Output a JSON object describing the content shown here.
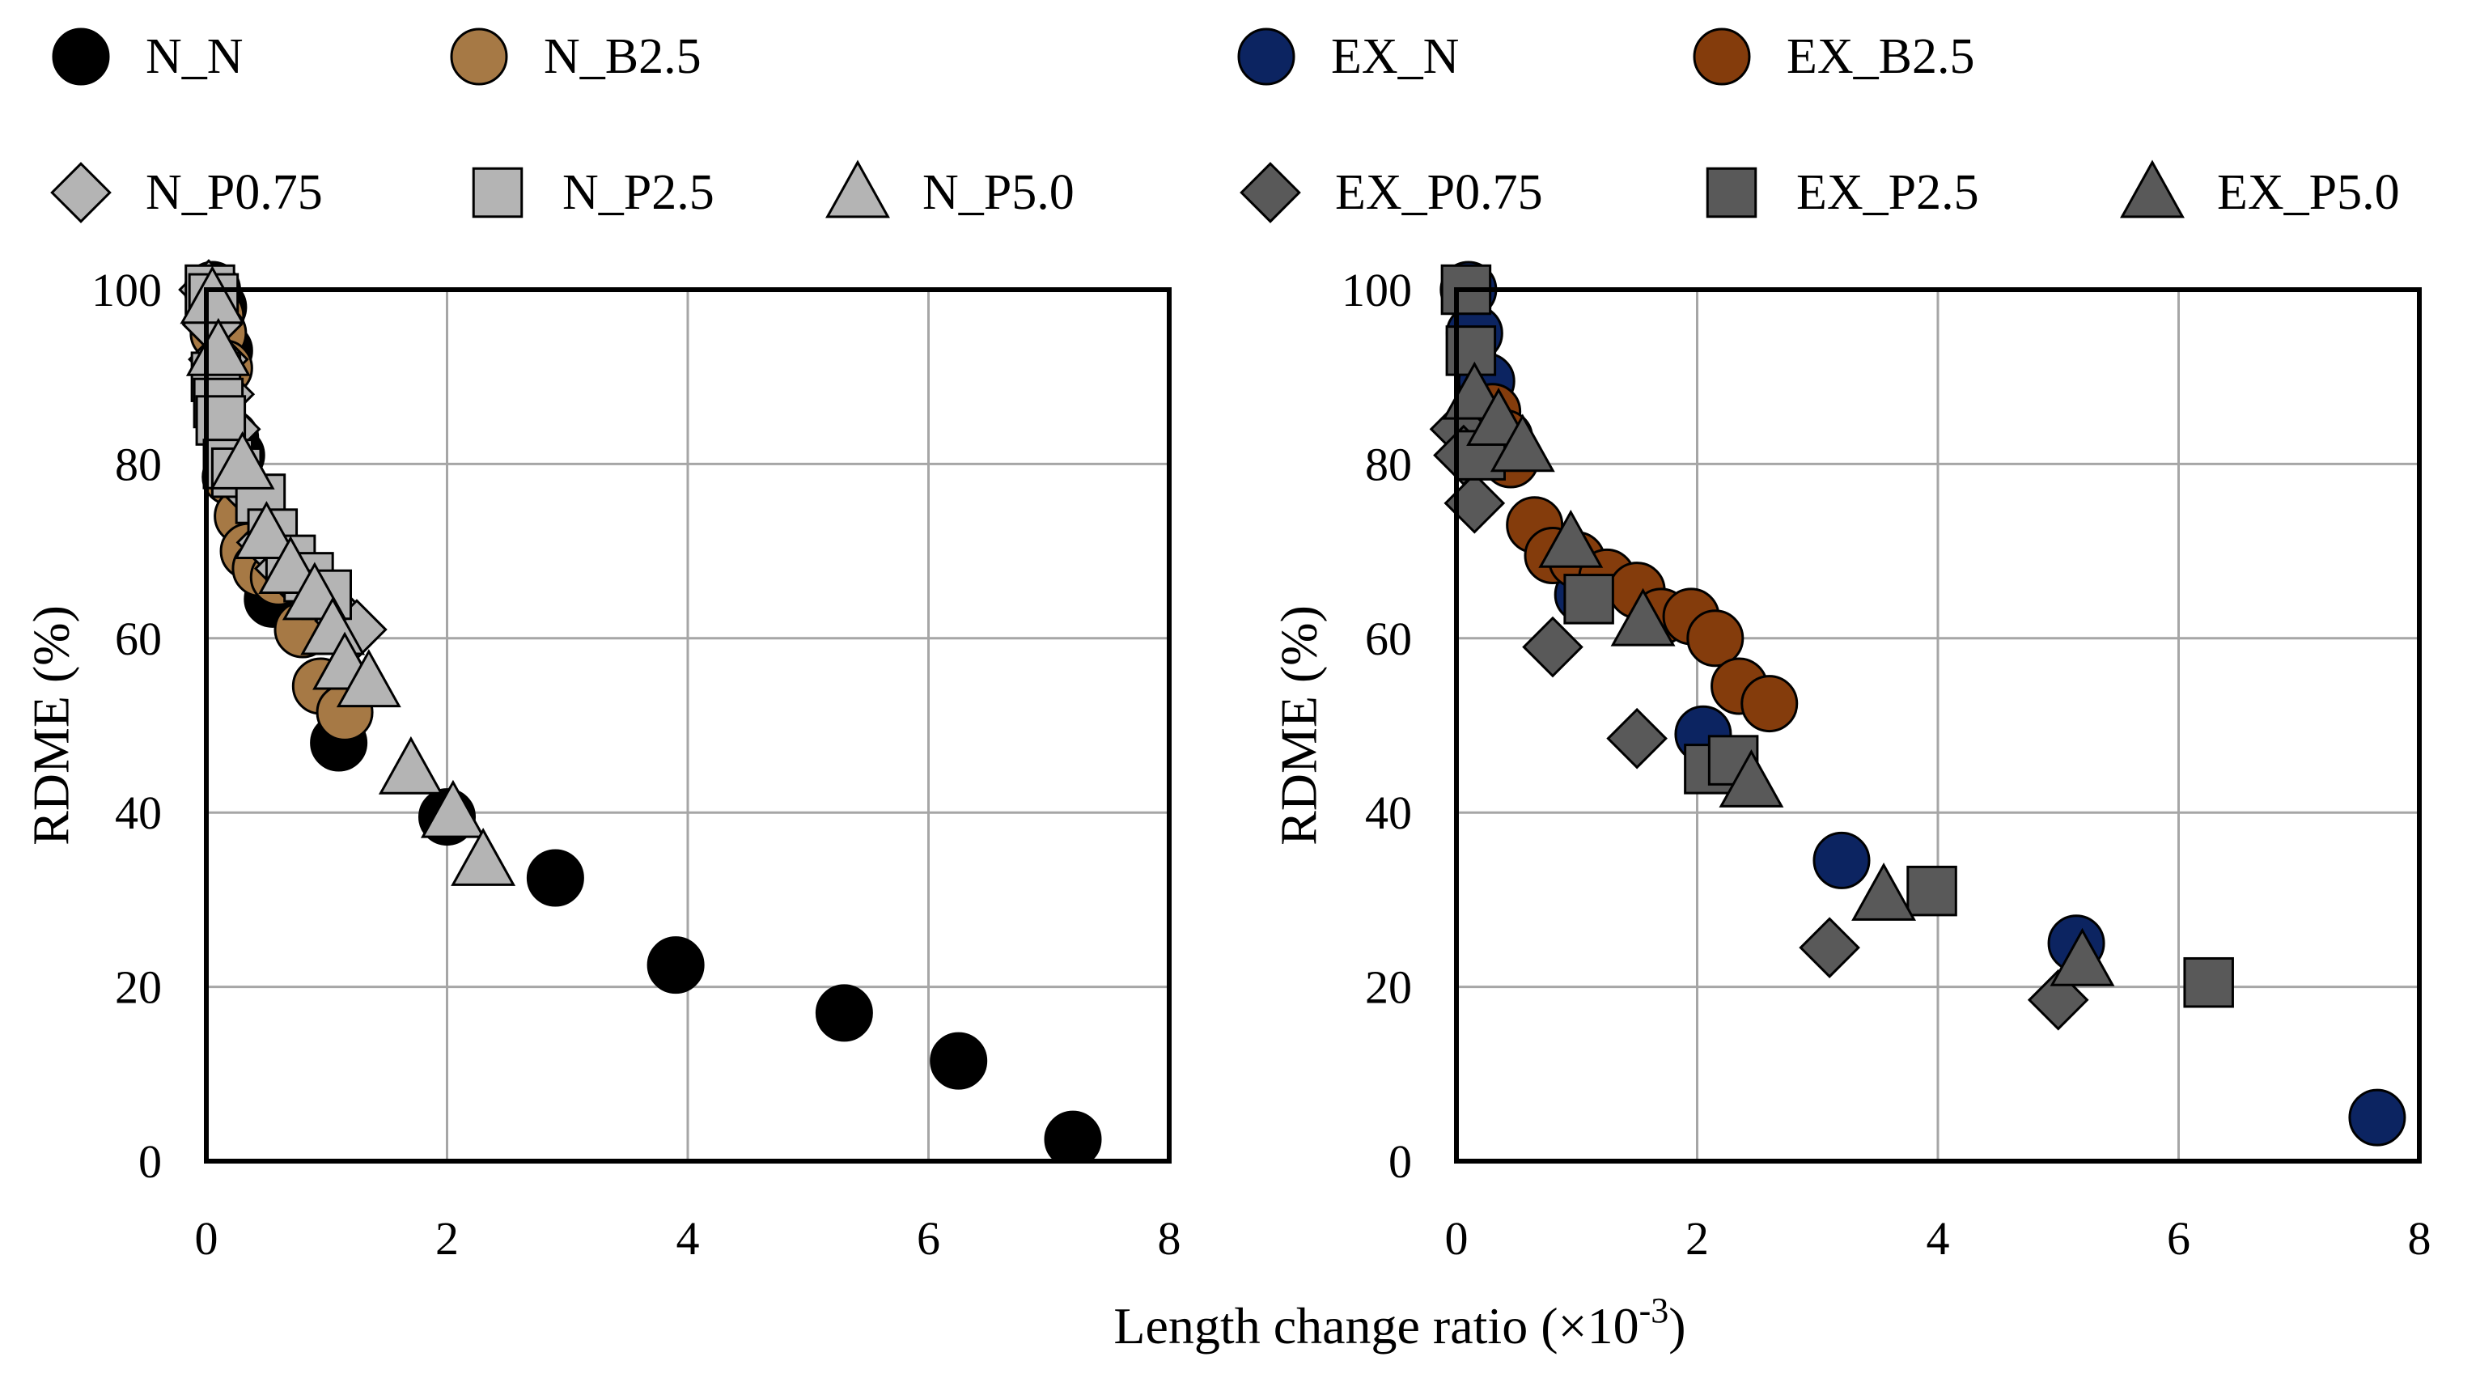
{
  "chart_data": {
    "type": "scatter",
    "shared_xlabel": "Length change ratio (×10",
    "shared_xlabel_superscript": "-3",
    "shared_xlabel_suffix": ")",
    "colors": {
      "N_N": "#000000",
      "N_B2.5": "#a67945",
      "N_gray": "#b4b4b4",
      "EX_N": "#0c2461",
      "EX_B2.5": "#843c0c",
      "EX_gray": "#595959"
    },
    "legend_rows": [
      [
        {
          "panel": 0,
          "series": 0,
          "label": "N_N"
        },
        {
          "panel": 0,
          "series": 1,
          "label": "N_B2.5"
        },
        {
          "panel": 1,
          "series": 0,
          "label": "EX_N"
        },
        {
          "panel": 1,
          "series": 1,
          "label": "EX_B2.5"
        }
      ],
      [
        {
          "panel": 0,
          "series": 2,
          "label": "N_P0.75"
        },
        {
          "panel": 0,
          "series": 3,
          "label": "N_P2.5"
        },
        {
          "panel": 0,
          "series": 4,
          "label": "N_P5.0"
        },
        {
          "panel": 1,
          "series": 2,
          "label": "EX_P0.75"
        },
        {
          "panel": 1,
          "series": 3,
          "label": "EX_P2.5"
        },
        {
          "panel": 1,
          "series": 4,
          "label": "EX_P5.0"
        }
      ]
    ],
    "panels": [
      {
        "ylabel": "RDME (%)",
        "xlim": [
          0,
          8
        ],
        "ylim": [
          0,
          100
        ],
        "xticks": [
          "0",
          "2",
          "4",
          "6",
          "8"
        ],
        "yticks": [
          "0",
          "20",
          "40",
          "60",
          "80",
          "100"
        ],
        "grid": true,
        "series": [
          {
            "name": "N_N",
            "marker": "circle",
            "color": "#000000",
            "x": [
              0.05,
              0.1,
              0.15,
              0.2,
              0.25,
              0.55,
              1.1,
              2.0,
              2.9,
              3.9,
              5.3,
              6.25,
              7.2
            ],
            "y": [
              100,
              98,
              93,
              83,
              81,
              64.5,
              48,
              39.5,
              32.5,
              22.5,
              17,
              11.5,
              2.5
            ]
          },
          {
            "name": "N_B2.5",
            "marker": "circle",
            "color": "#a67945",
            "x": [
              0.08,
              0.1,
              0.15,
              0.2,
              0.3,
              0.35,
              0.45,
              0.6,
              0.8,
              0.95,
              1.15
            ],
            "y": [
              97,
              95,
              91,
              78.5,
              74,
              70,
              68,
              67,
              61,
              54.5,
              51.5
            ]
          },
          {
            "name": "N_P0.75",
            "marker": "diamond",
            "color": "#b4b4b4",
            "x": [
              0.02,
              0.05,
              0.1,
              0.15,
              0.2,
              0.35,
              0.5,
              0.65,
              0.8,
              0.95,
              1.15,
              1.25
            ],
            "y": [
              100,
              96,
              92,
              88,
              84,
              77,
              71,
              68,
              66,
              65,
              62,
              61
            ]
          },
          {
            "name": "N_P2.5",
            "marker": "square",
            "color": "#b4b4b4",
            "x": [
              0.03,
              0.06,
              0.08,
              0.1,
              0.12,
              0.18,
              0.25,
              0.45,
              0.55,
              0.7,
              0.85,
              1.0
            ],
            "y": [
              100,
              99,
              90,
              87,
              85,
              80,
              79,
              76,
              72,
              69,
              67,
              65
            ]
          },
          {
            "name": "N_P5.0",
            "marker": "triangle",
            "color": "#b4b4b4",
            "x": [
              0.05,
              0.1,
              0.3,
              0.5,
              0.7,
              0.9,
              1.05,
              1.15,
              1.35,
              1.7,
              2.05,
              2.3
            ],
            "y": [
              99,
              93,
              80,
              72,
              68,
              65,
              61,
              57,
              55,
              45,
              40,
              34.5
            ]
          }
        ]
      },
      {
        "ylabel": "RDME (%)",
        "xlim": [
          0,
          8
        ],
        "ylim": [
          0,
          100
        ],
        "xticks": [
          "0",
          "2",
          "4",
          "6",
          "8"
        ],
        "yticks": [
          "0",
          "20",
          "40",
          "60",
          "80",
          "100"
        ],
        "grid": true,
        "series": [
          {
            "name": "EX_N",
            "marker": "circle",
            "color": "#0c2461",
            "x": [
              0.1,
              0.15,
              0.25,
              0.4,
              1.05,
              2.05,
              3.2,
              5.15,
              7.65
            ],
            "y": [
              100,
              95,
              89.5,
              81,
              65,
              49,
              34.5,
              25,
              5
            ]
          },
          {
            "name": "EX_B2.5",
            "marker": "circle",
            "color": "#843c0c",
            "x": [
              0.3,
              0.4,
              0.45,
              0.65,
              0.8,
              1.0,
              1.25,
              1.5,
              1.7,
              1.95,
              2.15,
              2.35,
              2.6
            ],
            "y": [
              86,
              83,
              80.5,
              73,
              69.5,
              69,
              67,
              65.5,
              62.5,
              62.5,
              60,
              54.5,
              52.5
            ]
          },
          {
            "name": "EX_P0.75",
            "marker": "diamond",
            "color": "#595959",
            "x": [
              0.03,
              0.06,
              0.15,
              0.8,
              1.5,
              3.1,
              5.0
            ],
            "y": [
              84,
              81,
              75.5,
              59,
              48.5,
              24.5,
              18.5
            ]
          },
          {
            "name": "EX_P2.5",
            "marker": "square",
            "color": "#595959",
            "x": [
              0.08,
              0.12,
              0.2,
              1.1,
              2.1,
              2.3,
              3.95,
              6.25
            ],
            "y": [
              100,
              93,
              81,
              64.5,
              45,
              46,
              31,
              20.5
            ]
          },
          {
            "name": "EX_P5.0",
            "marker": "triangle",
            "color": "#595959",
            "x": [
              0.15,
              0.35,
              0.55,
              0.95,
              1.55,
              2.45,
              3.55,
              5.2
            ],
            "y": [
              88,
              85,
              82,
              71,
              62,
              43.5,
              30.5,
              23
            ]
          }
        ]
      }
    ]
  }
}
